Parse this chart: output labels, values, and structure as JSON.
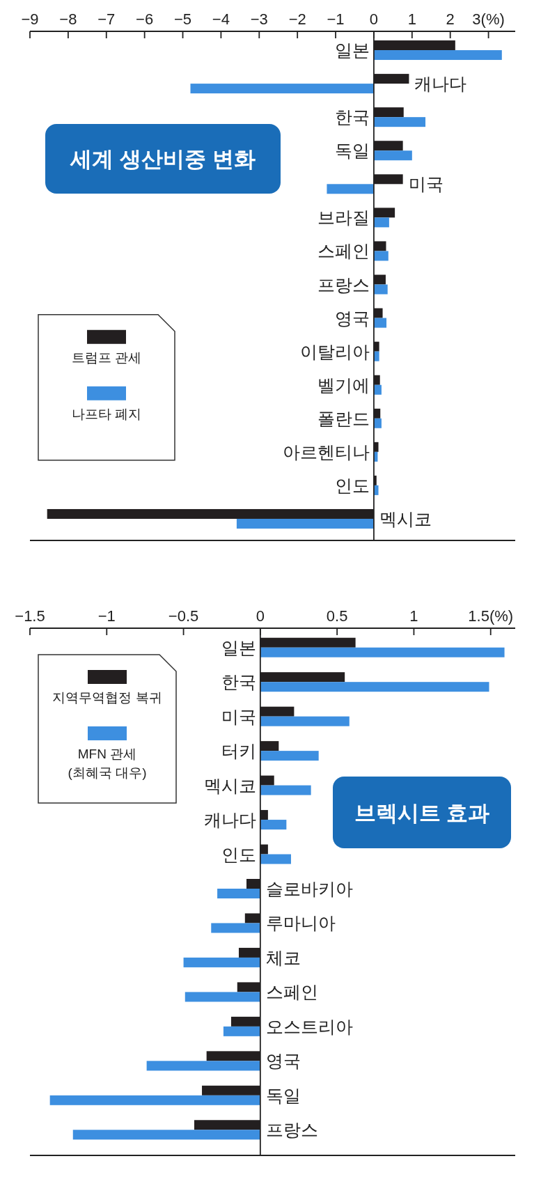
{
  "chart_data": [
    {
      "type": "bar",
      "orientation": "horizontal",
      "title": "세계 생산비중 변화",
      "categories": [
        "일본",
        "캐나다",
        "한국",
        "독일",
        "미국",
        "브라질",
        "스페인",
        "프랑스",
        "영국",
        "이탈리아",
        "벨기에",
        "폴란드",
        "아르헨티나",
        "인도",
        "멕시코"
      ],
      "series": [
        {
          "name": "트럼프 관세",
          "color": "#231f20",
          "values": [
            2.13,
            0.92,
            0.78,
            0.76,
            0.76,
            0.55,
            0.32,
            0.31,
            0.23,
            0.14,
            0.16,
            0.17,
            0.12,
            0.07,
            -8.55
          ]
        },
        {
          "name": "나프타 폐지",
          "color": "#3d8fe0",
          "values": [
            3.35,
            -4.8,
            1.35,
            1.0,
            -1.23,
            0.4,
            0.38,
            0.36,
            0.33,
            0.14,
            0.2,
            0.2,
            0.1,
            0.12,
            -3.59
          ]
        }
      ],
      "xlim": [
        -9,
        3.7
      ],
      "xticks": [
        -9,
        -8,
        -7,
        -6,
        -5,
        -4,
        -3,
        -2,
        -1,
        0,
        1,
        2,
        {
          "value": 3,
          "label": "3(%)"
        }
      ],
      "legend": "left"
    },
    {
      "type": "bar",
      "orientation": "horizontal",
      "title": "브렉시트 효과",
      "categories": [
        "일본",
        "한국",
        "미국",
        "터키",
        "멕시코",
        "캐나다",
        "인도",
        "슬로바키아",
        "루마니아",
        "체코",
        "스페인",
        "오스트리아",
        "영국",
        "독일",
        "프랑스"
      ],
      "series": [
        {
          "name": "지역무역협정 복귀",
          "color": "#231f20",
          "values": [
            0.62,
            0.55,
            0.22,
            0.12,
            0.09,
            0.05,
            0.05,
            -0.09,
            -0.1,
            -0.14,
            -0.15,
            -0.19,
            -0.35,
            -0.38,
            -0.43
          ]
        },
        {
          "name": "MFN 관세 (최혜국 대우)",
          "color": "#3d8fe0",
          "values": [
            1.59,
            1.49,
            0.58,
            0.38,
            0.33,
            0.17,
            0.2,
            -0.28,
            -0.32,
            -0.5,
            -0.49,
            -0.24,
            -0.74,
            -1.37,
            -1.22
          ]
        }
      ],
      "xlim": [
        -1.5,
        1.66
      ],
      "xticks": [
        -1.5,
        -1,
        -0.5,
        0,
        0.5,
        1,
        {
          "value": 1.5,
          "label": "1.5(%)"
        }
      ],
      "legend": "top left"
    }
  ]
}
